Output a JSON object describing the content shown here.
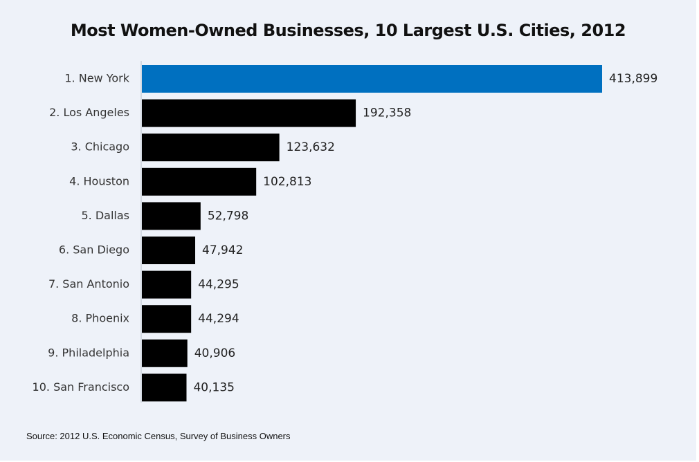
{
  "chart_data": {
    "type": "bar",
    "orientation": "horizontal",
    "title": "Most Women-Owned Businesses, 10 Largest U.S. Cities, 2012",
    "categories": [
      "1. New York",
      "2. Los Angeles",
      "3. Chicago",
      "4. Houston",
      "5. Dallas",
      "6. San Diego",
      "7. San Antonio",
      "8. Phoenix",
      "9. Philadelphia",
      "10. San Francisco"
    ],
    "values": [
      413899,
      192358,
      123632,
      102813,
      52798,
      47942,
      44295,
      44294,
      40906,
      40135
    ],
    "value_labels": [
      "413,899",
      "192,358",
      "123,632",
      "102,813",
      "52,798",
      "47,942",
      "44,295",
      "44,294",
      "40,906",
      "40,135"
    ],
    "xlim": [
      0,
      413899
    ],
    "grid": false,
    "legend": "none",
    "colors": {
      "highlight": "#0070c0",
      "default": "#000000",
      "background": "#eef2f9",
      "axis": "#b8c0cc"
    },
    "highlight_index": 0
  },
  "source": "Source: 2012 U.S. Economic Census, Survey of Business Owners"
}
